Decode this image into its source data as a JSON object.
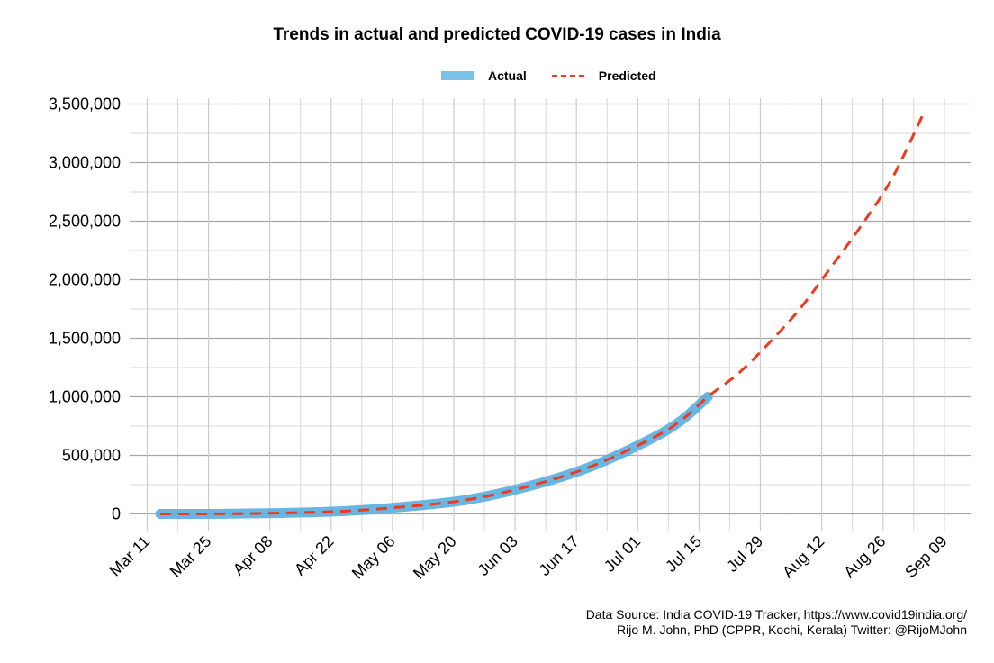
{
  "chart_data": {
    "type": "line",
    "title": "Trends in actual and predicted COVID-19 cases in India",
    "xlabel": "",
    "ylabel": "",
    "ylim": [
      -150000,
      3550000
    ],
    "yticks": [
      0,
      500000,
      1000000,
      1500000,
      2000000,
      2500000,
      3000000,
      3500000
    ],
    "ytick_labels": [
      "0",
      "500,000",
      "1,000,000",
      "1,500,000",
      "2,000,000",
      "2,500,000",
      "3,000,000",
      "3,500,000"
    ],
    "x_axis_type": "date",
    "xlim": [
      "2020-03-07",
      "2020-09-15"
    ],
    "xticks": [
      "2020-03-11",
      "2020-03-25",
      "2020-04-08",
      "2020-04-22",
      "2020-05-06",
      "2020-05-20",
      "2020-06-03",
      "2020-06-17",
      "2020-07-01",
      "2020-07-15",
      "2020-07-29",
      "2020-08-12",
      "2020-08-26",
      "2020-09-09"
    ],
    "xtick_labels": [
      "Mar 11",
      "Mar 25",
      "Apr 08",
      "Apr 22",
      "May 06",
      "May 20",
      "Jun 03",
      "Jun 17",
      "Jul 01",
      "Jul 15",
      "Jul 29",
      "Aug 12",
      "Aug 26",
      "Sep 09"
    ],
    "grid": true,
    "legend_position": "top",
    "series": [
      {
        "name": "Actual",
        "color": "#5aaee0",
        "style": "solid",
        "x": [
          "2020-03-14",
          "2020-03-28",
          "2020-04-11",
          "2020-04-25",
          "2020-05-09",
          "2020-05-23",
          "2020-06-06",
          "2020-06-20",
          "2020-07-04",
          "2020-07-11",
          "2020-07-17"
        ],
        "y": [
          0,
          1000,
          8000,
          24000,
          62000,
          120000,
          235000,
          400000,
          640000,
          800000,
          1000000
        ]
      },
      {
        "name": "Predicted",
        "color": "#ee3a1e",
        "style": "dashed",
        "x": [
          "2020-03-14",
          "2020-03-28",
          "2020-04-11",
          "2020-04-25",
          "2020-05-09",
          "2020-05-23",
          "2020-06-06",
          "2020-06-20",
          "2020-07-04",
          "2020-07-11",
          "2020-07-17",
          "2020-07-24",
          "2020-07-31",
          "2020-08-07",
          "2020-08-14",
          "2020-08-21",
          "2020-08-28",
          "2020-09-04"
        ],
        "y": [
          0,
          1000,
          8000,
          24000,
          62000,
          120000,
          235000,
          400000,
          640000,
          800000,
          1000000,
          1200000,
          1460000,
          1750000,
          2100000,
          2460000,
          2860000,
          3400000
        ]
      }
    ],
    "legend": [
      "Actual",
      "Predicted"
    ],
    "annotations": [
      "Data Source: India COVID-19 Tracker, https://www.covid19india.org/",
      "Rijo M. John, PhD (CPPR, Kochi, Kerala) Twitter: @RijoMJohn"
    ]
  }
}
